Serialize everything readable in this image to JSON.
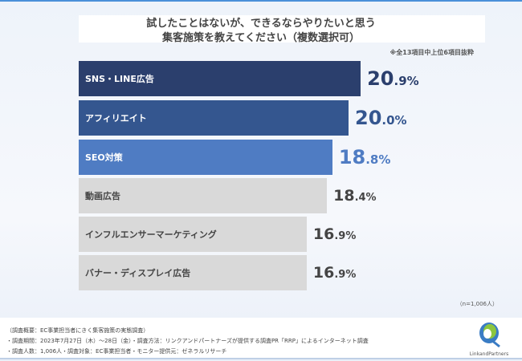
{
  "chart_data": {
    "type": "bar",
    "orientation": "horizontal",
    "title": [
      "試したことはないが、できるならやりたいと思う",
      "集客施策を教えてください（複数選択可）"
    ],
    "note": "※全13項目中上位6項目抜粋",
    "categories": [
      "SNS・LINE広告",
      "アフィリエイト",
      "SEO対策",
      "動画広告",
      "インフルエンサーマーケティング",
      "バナー・ディスプレイ広告"
    ],
    "values": [
      20.9,
      20.0,
      18.8,
      18.4,
      16.9,
      16.9
    ],
    "value_labels": [
      [
        "20",
        ".9%"
      ],
      [
        "20",
        ".0%"
      ],
      [
        "18",
        ".8%"
      ],
      [
        "18",
        ".4%"
      ],
      [
        "16",
        ".9%"
      ],
      [
        "16",
        ".9%"
      ]
    ],
    "unit": "%",
    "bar_colors": [
      "#2b3f6d",
      "#34568f",
      "#4f7cc3",
      "#d9d9d9",
      "#d9d9d9",
      "#d9d9d9"
    ],
    "label_colors": [
      "#ffffff",
      "#ffffff",
      "#ffffff",
      "#444444",
      "#444444",
      "#444444"
    ],
    "value_colors": [
      "#2b3f6d",
      "#34568f",
      "#4f7cc3",
      "#444444",
      "#444444",
      "#444444"
    ],
    "sample": "（n=1,006人）"
  },
  "footer": {
    "lines": [
      "（調査概要：EC事業担当者にきく集客施策の実態調査）",
      "・調査期間：2023年7月27日（木）～28日（金）・調査方法：リンクアンドパートナーズが提供する調査PR「RRP」によるインターネット調査",
      "・調査人数：1,006人・調査対象：EC事業担当者・モニター提供元：ゼネラルリサーチ"
    ],
    "logo": "LinkandPartners"
  }
}
